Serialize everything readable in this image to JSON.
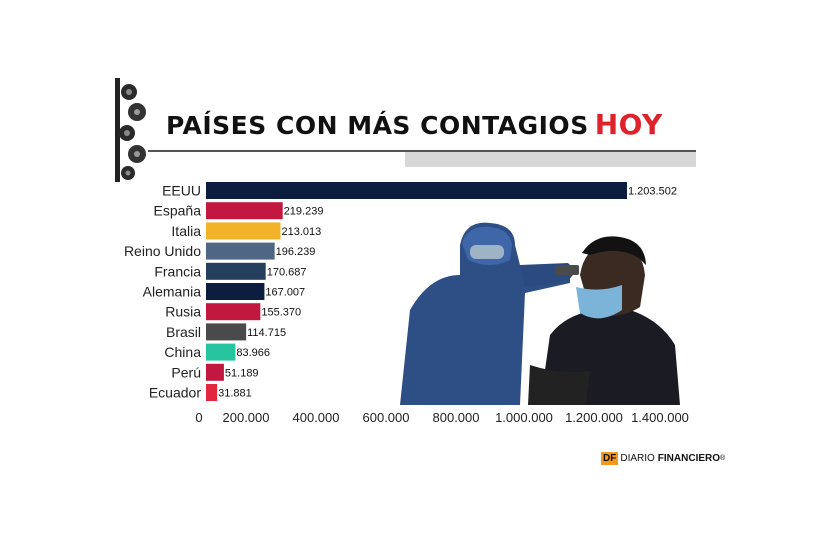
{
  "title": {
    "main": "PAÍSES CON MÁS CONTAGIOS",
    "highlight": "HOY"
  },
  "colors": {
    "title_highlight": "#e0222c",
    "logo_accent": "#f29a1e"
  },
  "chart_data": {
    "type": "bar",
    "orientation": "horizontal",
    "categories": [
      "EEUU",
      "España",
      "Italia",
      "Reino Unido",
      "Francia",
      "Alemania",
      "Rusia",
      "Brasil",
      "China",
      "Perú",
      "Ecuador"
    ],
    "values": [
      1203502,
      219239,
      213013,
      196239,
      170687,
      167007,
      155370,
      114715,
      83966,
      51189,
      31881
    ],
    "value_labels": [
      "1.203.502",
      "219.239",
      "213.013",
      "196.239",
      "170.687",
      "167.007",
      "155.370",
      "114.715",
      "83.966",
      "51.189",
      "31.881"
    ],
    "bar_colors": [
      "#0c1d3f",
      "#c2183f",
      "#f2b229",
      "#4f6784",
      "#24405e",
      "#0c1d3f",
      "#c2183f",
      "#4a4a4a",
      "#27c4a0",
      "#c2183f",
      "#e3263f"
    ],
    "xlim": [
      0,
      1400000
    ],
    "xticks": [
      "0",
      "200.000",
      "400.000",
      "600.000",
      "800.000",
      "1.000.000",
      "1.200.000",
      "1.400.000"
    ],
    "grid": false,
    "legend": "none"
  },
  "logo": {
    "badge": "DF",
    "word1": "DIARIO",
    "word2": "FINANCIERO",
    "mark": "®"
  }
}
